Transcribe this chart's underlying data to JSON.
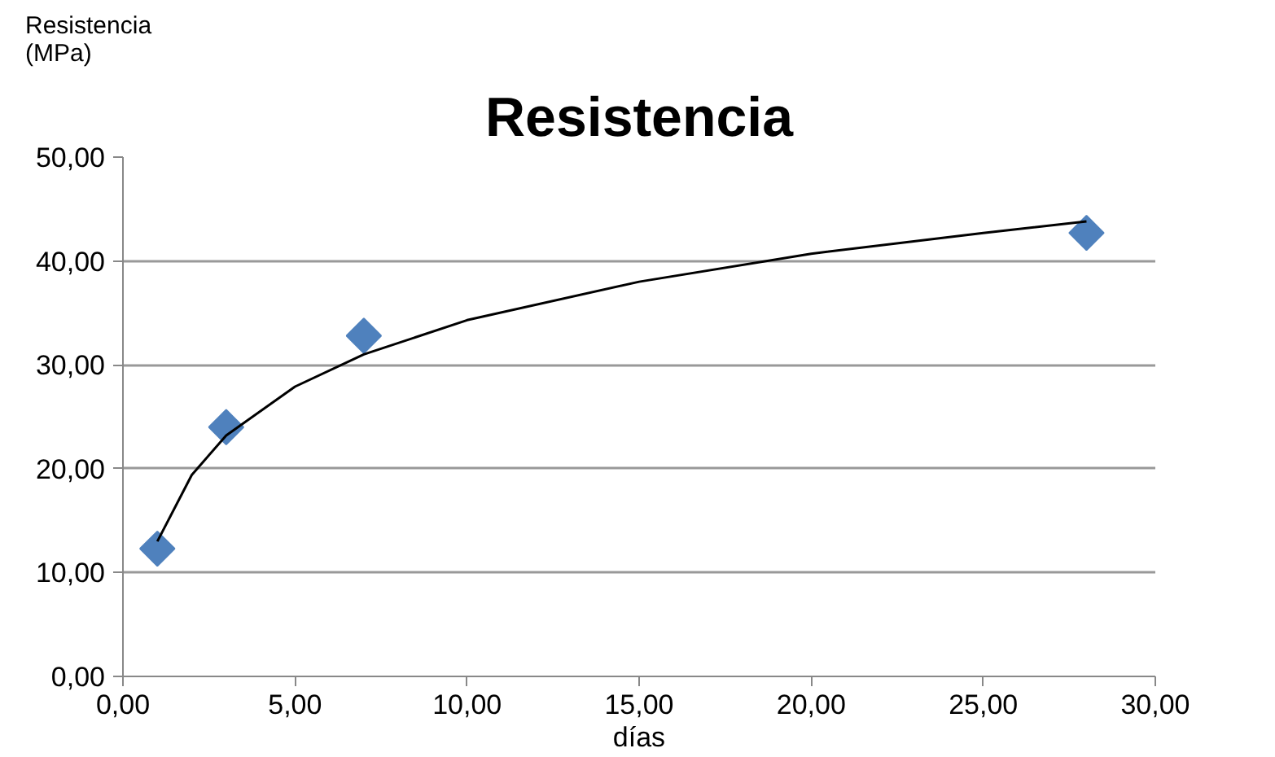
{
  "chart_data": {
    "type": "scatter",
    "title": "Resistencia",
    "ylabel": "Resistencia\n(MPa)",
    "xlabel": "días",
    "x": [
      1,
      3,
      7,
      28
    ],
    "series": [
      {
        "color": "#4f81bd",
        "values": [
          12.3,
          24.0,
          32.8,
          42.7
        ],
        "marker": "diamond"
      },
      {
        "type": "line",
        "color": "#000000",
        "x": [
          1,
          2,
          3,
          5,
          7,
          10,
          15,
          20,
          25,
          28
        ],
        "values": [
          13.0,
          19.4,
          23.2,
          27.9,
          31.0,
          34.3,
          38.0,
          40.7,
          42.7,
          43.8
        ]
      }
    ],
    "xlim": [
      0,
      30
    ],
    "ylim": [
      0,
      50
    ],
    "xticks": [
      {
        "value": 0,
        "label": "0,00"
      },
      {
        "value": 5,
        "label": "5,00"
      },
      {
        "value": 10,
        "label": "10,00"
      },
      {
        "value": 15,
        "label": "15,00"
      },
      {
        "value": 20,
        "label": "20,00"
      },
      {
        "value": 25,
        "label": "25,00"
      },
      {
        "value": 30,
        "label": "30,00"
      }
    ],
    "yticks": [
      {
        "value": 0,
        "label": "0,00"
      },
      {
        "value": 10,
        "label": "10,00"
      },
      {
        "value": 20,
        "label": "20,00"
      },
      {
        "value": 30,
        "label": "30,00"
      },
      {
        "value": 40,
        "label": "40,00"
      },
      {
        "value": 50,
        "label": "50,00"
      }
    ],
    "grid": "y"
  }
}
